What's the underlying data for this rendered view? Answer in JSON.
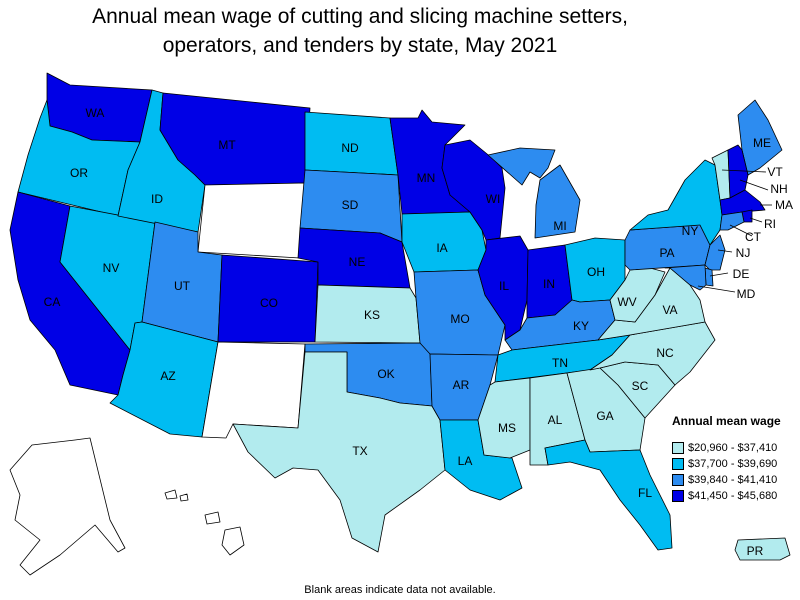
{
  "title_line1": "Annual mean wage of cutting and slicing machine setters,",
  "title_line2": "operators, and tenders by state, May 2021",
  "legend": {
    "title": "Annual mean wage",
    "items": [
      {
        "label": "$20,960 - $37,410",
        "color": "#b2ebee"
      },
      {
        "label": "$37,700 - $39,690",
        "color": "#00bcf2"
      },
      {
        "label": "$39,840 - $41,410",
        "color": "#2d8cf0"
      },
      {
        "label": "$41,450 - $45,680",
        "color": "#0000e6"
      }
    ]
  },
  "footnote": "Blank areas indicate data not available.",
  "states": {
    "WA": 4,
    "OR": 2,
    "CA": 4,
    "NV": 2,
    "ID": 2,
    "MT": 4,
    "WY": 0,
    "UT": 3,
    "AZ": 2,
    "CO": 4,
    "NM": 0,
    "ND": 2,
    "SD": 3,
    "NE": 4,
    "KS": 1,
    "OK": 3,
    "TX": 1,
    "MN": 4,
    "IA": 2,
    "MO": 3,
    "AR": 3,
    "LA": 2,
    "WI": 4,
    "IL": 4,
    "MI": 3,
    "IN": 4,
    "OH": 2,
    "KY": 3,
    "TN": 2,
    "MS": 1,
    "AL": 1,
    "GA": 1,
    "FL": 2,
    "SC": 1,
    "NC": 1,
    "VA": 1,
    "WV": 1,
    "PA": 3,
    "NY": 2,
    "ME": 3,
    "VT": 1,
    "NH": 4,
    "MA": 4,
    "RI": 4,
    "CT": 3,
    "NJ": 3,
    "DE": 3,
    "MD": 3,
    "AK": 0,
    "HI": 0,
    "PR": 1
  }
}
